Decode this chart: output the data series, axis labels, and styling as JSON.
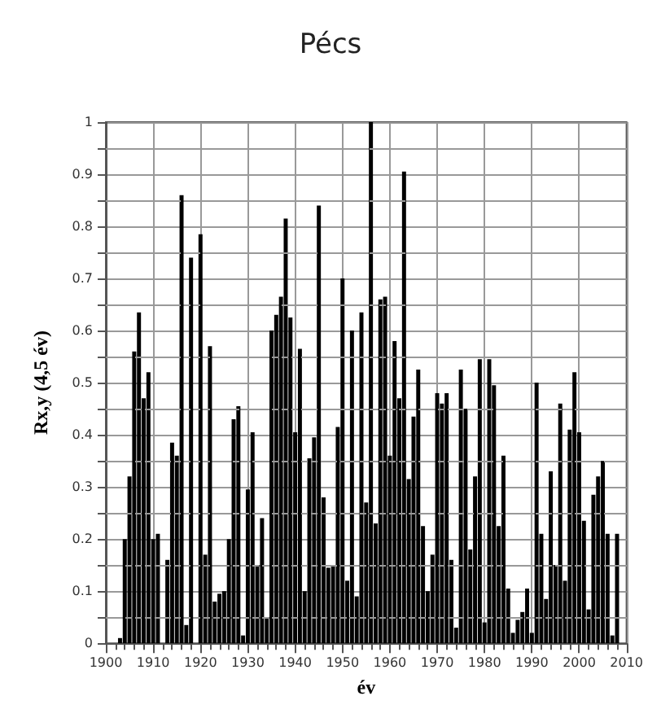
{
  "chart_data": {
    "type": "bar",
    "title": "Pécs",
    "xlabel": "év",
    "ylabel": "Rx,y (4,5 év)",
    "x": [
      1903,
      1904,
      1905,
      1906,
      1907,
      1908,
      1909,
      1910,
      1911,
      1912,
      1913,
      1914,
      1915,
      1916,
      1917,
      1918,
      1919,
      1920,
      1921,
      1922,
      1923,
      1924,
      1925,
      1926,
      1927,
      1928,
      1929,
      1930,
      1931,
      1932,
      1933,
      1934,
      1935,
      1936,
      1937,
      1938,
      1939,
      1940,
      1941,
      1942,
      1943,
      1944,
      1945,
      1946,
      1947,
      1948,
      1949,
      1950,
      1951,
      1952,
      1953,
      1954,
      1955,
      1956,
      1957,
      1958,
      1959,
      1960,
      1961,
      1962,
      1963,
      1964,
      1965,
      1966,
      1967,
      1968,
      1969,
      1970,
      1971,
      1972,
      1973,
      1974,
      1975,
      1976,
      1977,
      1978,
      1979,
      1980,
      1981,
      1982,
      1983,
      1984,
      1985,
      1986,
      1987,
      1988,
      1989,
      1990,
      1991,
      1992,
      1993,
      1994,
      1995,
      1996,
      1997,
      1998,
      1999,
      2000,
      2001,
      2002,
      2003,
      2004,
      2005,
      2006,
      2007,
      2008
    ],
    "values": [
      0.01,
      0.2,
      0.32,
      0.56,
      0.635,
      0.47,
      0.52,
      0.2,
      0.21,
      0.0,
      0.16,
      0.385,
      0.36,
      0.86,
      0.035,
      0.74,
      0.0,
      0.785,
      0.17,
      0.57,
      0.08,
      0.095,
      0.1,
      0.2,
      0.43,
      0.455,
      0.015,
      0.295,
      0.405,
      0.15,
      0.24,
      0.05,
      0.6,
      0.63,
      0.665,
      0.815,
      0.625,
      0.405,
      0.565,
      0.1,
      0.355,
      0.395,
      0.84,
      0.28,
      0.145,
      0.15,
      0.415,
      0.7,
      0.12,
      0.6,
      0.09,
      0.635,
      0.27,
      1.0,
      0.23,
      0.66,
      0.665,
      0.36,
      0.58,
      0.47,
      0.905,
      0.315,
      0.435,
      0.525,
      0.225,
      0.1,
      0.17,
      0.48,
      0.46,
      0.48,
      0.16,
      0.03,
      0.525,
      0.45,
      0.18,
      0.32,
      0.545,
      0.04,
      0.545,
      0.495,
      0.225,
      0.36,
      0.105,
      0.02,
      0.045,
      0.06,
      0.105,
      0.02,
      0.5,
      0.21,
      0.085,
      0.33,
      0.15,
      0.46,
      0.12,
      0.41,
      0.52,
      0.405,
      0.235,
      0.065,
      0.285,
      0.32,
      0.35,
      0.21,
      0.015,
      0.21
    ],
    "color": "#000000",
    "xlim": [
      1900,
      2010
    ],
    "xticks": [
      1900,
      1910,
      1920,
      1930,
      1940,
      1950,
      1960,
      1970,
      1980,
      1990,
      2000,
      2010
    ],
    "ylim": [
      0,
      1
    ],
    "yticks": [
      0,
      0.1,
      0.2,
      0.3,
      0.4,
      0.5,
      0.6,
      0.7,
      0.8,
      0.9,
      1
    ],
    "grid": true
  }
}
